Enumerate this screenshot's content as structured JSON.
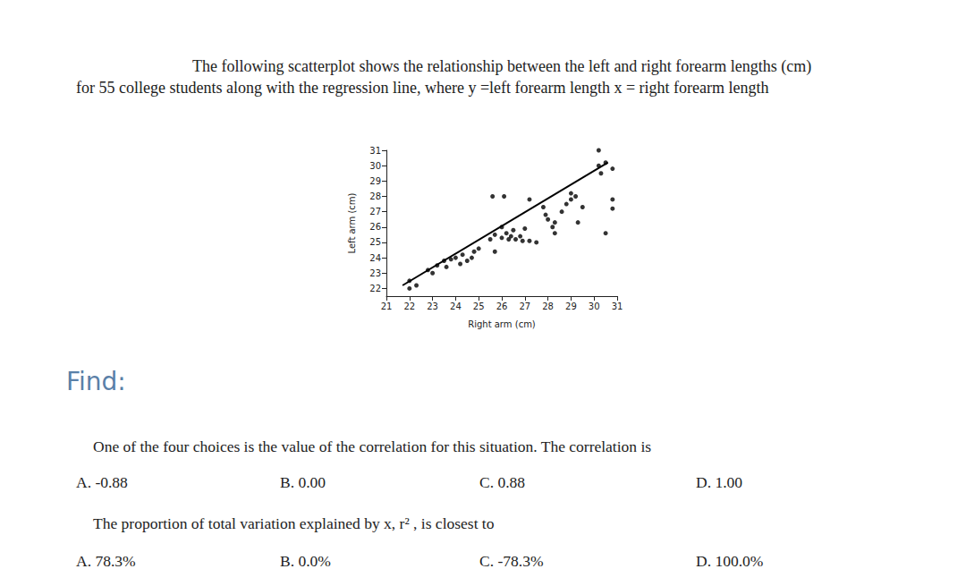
{
  "header": {
    "lines": [
      "The following scatterplot shows the relationship between the left and right forearm lengths (cm)",
      "for 55 college students along with the regression line, where y =left forearm length x = right forearm length"
    ]
  },
  "chart_data": {
    "type": "scatter",
    "x_label": "Right arm (cm)",
    "y_label": "Left arm (cm)",
    "x": [
      22,
      22,
      22.3,
      22.8,
      23.2,
      23.5,
      23.6,
      23.8,
      24.0,
      24.2,
      24.3,
      24.5,
      24.7,
      25.7,
      25.5,
      25.7,
      26.0,
      26.2,
      26.3,
      26.5,
      26.6,
      26.8,
      26.9,
      27.2,
      27.5,
      25.6,
      26.1,
      27.2,
      27.8,
      27.9,
      28.0,
      28.2,
      28.3,
      28.3,
      28.6,
      28.8,
      29.0,
      29.0,
      29.2,
      29.5,
      29.3,
      30.5,
      30.2,
      30.3,
      30.5,
      30.8,
      30.2,
      30.8,
      30.8,
      25.0,
      24.8,
      26.0,
      27.0,
      26.4,
      23.0
    ],
    "y": [
      22.5,
      22,
      22.2,
      23.2,
      23.5,
      23.8,
      23.4,
      23.9,
      24.0,
      23.6,
      24.2,
      23.8,
      24.0,
      24.4,
      25.2,
      25.5,
      25.3,
      25.6,
      25.2,
      25.8,
      25.2,
      25.4,
      25.1,
      25.1,
      25.0,
      28.0,
      28.0,
      27.8,
      27.3,
      26.8,
      26.5,
      26.0,
      26.3,
      25.6,
      27.0,
      27.5,
      27.8,
      28.2,
      28.0,
      27.3,
      26.3,
      25.6,
      30.0,
      29.5,
      30.2,
      29.8,
      31.0,
      27.8,
      27.2,
      24.6,
      24.4,
      26.0,
      25.9,
      25.4,
      23.0
    ],
    "color": "#000000",
    "marker": "circle",
    "xlim": [
      21,
      31
    ],
    "ylim": [
      21.5,
      31
    ],
    "xticks": [
      21,
      22,
      23,
      24,
      25,
      26,
      27,
      28,
      29,
      30,
      31
    ],
    "yticks": [
      22,
      23,
      24,
      25,
      26,
      27,
      28,
      29,
      30,
      31
    ],
    "grid": false,
    "regression_line": {
      "x": [
        21.7,
        30.6
      ],
      "y": [
        22.2,
        30.2
      ]
    }
  },
  "find": "Find:",
  "questions": [
    {
      "text": "One of the four choices is the value of the correlation for this situation. The correlation is",
      "choices": [
        "A. -0.88",
        "B. 0.00",
        "C. 0.88",
        "D. 1.00"
      ]
    },
    {
      "text": "The proportion of total variation explained by x, r² , is closest to",
      "choices": [
        "A. 78.3%",
        "B. 0.0%",
        "C. -78.3%",
        "D. 100.0%"
      ]
    }
  ]
}
